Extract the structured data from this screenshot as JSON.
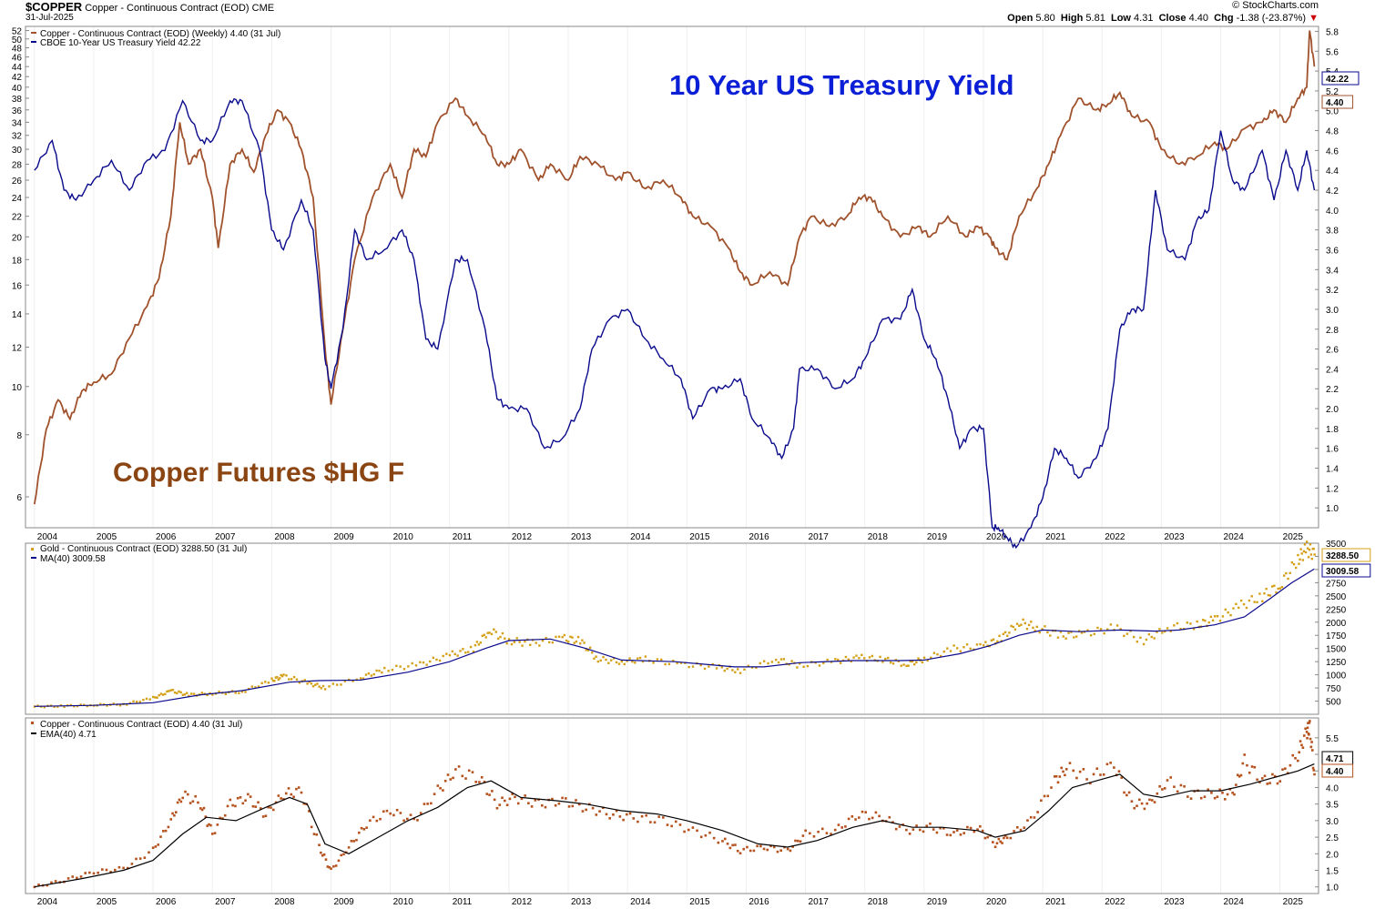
{
  "header": {
    "symbol": "$COPPER",
    "description": "Copper - Continuous Contract (EOD)",
    "exchange": "CME",
    "date": "31-Jul-2025",
    "ohlc": {
      "open_label": "Open",
      "open": "5.80",
      "high_label": "High",
      "high": "5.81",
      "low_label": "Low",
      "low": "4.31",
      "close_label": "Close",
      "close": "4.40",
      "chg_label": "Chg",
      "chg": "-1.38 (-23.87%)"
    },
    "watermark": "© StockCharts.com"
  },
  "annotations": {
    "yield_title": "10 Year US Treasury Yield",
    "copper_title": "Copper Futures $HG F"
  },
  "colors": {
    "copper": "#a0522d",
    "yield": "#0a0a8c",
    "gold": "#d4a017",
    "ma": "#0a0a8c",
    "ema": "#000000",
    "ema_dots": "#b5521e",
    "yield_text": "#0a1fd6",
    "copper_text": "#8b4513"
  },
  "chart_data": [
    {
      "type": "line",
      "title": "Copper vs 10-Year US Treasury Yield (Weekly)",
      "legend": [
        "Copper - Continuous Contract (EOD) (Weekly) 4.40 (31 Jul)",
        "CBOE 10-Year US Treasury Yield 42.22"
      ],
      "x_ticks": [
        "2004",
        "2005",
        "2006",
        "2007",
        "2008",
        "2009",
        "2010",
        "2011",
        "2012",
        "2013",
        "2014",
        "2015",
        "2016",
        "2017",
        "2018",
        "2019",
        "2020",
        "2021",
        "2022",
        "2023",
        "2024",
        "2025"
      ],
      "left_axis": {
        "scale": "log",
        "ylim": [
          5.2,
          53
        ],
        "ticks": [
          6,
          8,
          10,
          12,
          14,
          16,
          18,
          20,
          22,
          24,
          26,
          28,
          30,
          32,
          34,
          36,
          38,
          40,
          42,
          44,
          46,
          48,
          50,
          52
        ]
      },
      "right_axis": {
        "ylim": [
          0.8,
          5.85
        ],
        "ticks": [
          1.0,
          1.2,
          1.4,
          1.6,
          1.8,
          2.0,
          2.2,
          2.4,
          2.6,
          2.8,
          3.0,
          3.2,
          3.4,
          3.6,
          3.8,
          4.0,
          4.2,
          4.4,
          4.6,
          4.8,
          5.0,
          5.2,
          5.4,
          5.6,
          5.8
        ]
      },
      "series": [
        {
          "name": "Copper - Continuous Contract (EOD) (Weekly)",
          "axis": "left",
          "last_label": "4.40",
          "x": [
            2004.0,
            2004.2,
            2004.4,
            2004.6,
            2004.8,
            2005.0,
            2005.3,
            2005.6,
            2005.9,
            2006.1,
            2006.3,
            2006.45,
            2006.6,
            2006.8,
            2007.0,
            2007.1,
            2007.3,
            2007.5,
            2007.7,
            2007.9,
            2008.1,
            2008.3,
            2008.5,
            2008.7,
            2008.9,
            2009.0,
            2009.2,
            2009.4,
            2009.7,
            2010.0,
            2010.2,
            2010.4,
            2010.6,
            2010.8,
            2011.1,
            2011.3,
            2011.6,
            2011.8,
            2012.0,
            2012.2,
            2012.5,
            2012.7,
            2013.0,
            2013.2,
            2013.5,
            2013.8,
            2014.0,
            2014.3,
            2014.6,
            2014.9,
            2015.1,
            2015.4,
            2015.7,
            2015.9,
            2016.1,
            2016.4,
            2016.7,
            2016.9,
            2017.1,
            2017.4,
            2017.7,
            2017.9,
            2018.1,
            2018.3,
            2018.6,
            2018.9,
            2019.1,
            2019.4,
            2019.7,
            2019.9,
            2020.1,
            2020.2,
            2020.4,
            2020.6,
            2020.9,
            2021.1,
            2021.3,
            2021.6,
            2021.9,
            2022.1,
            2022.3,
            2022.5,
            2022.8,
            2023.0,
            2023.3,
            2023.6,
            2023.9,
            2024.1,
            2024.4,
            2024.7,
            2024.9,
            2025.1,
            2025.3,
            2025.45,
            2025.5,
            2025.58
          ],
          "values": [
            5.8,
            8.2,
            9.4,
            8.6,
            9.8,
            10.2,
            10.6,
            12.5,
            14.5,
            16.5,
            22,
            34,
            28,
            30,
            24,
            19,
            28,
            30,
            27,
            32,
            36,
            34,
            30,
            24,
            12,
            9.2,
            13,
            18,
            24,
            28,
            24,
            30,
            29,
            34,
            38,
            35,
            32,
            28,
            28,
            30,
            26,
            28,
            26,
            29,
            28,
            26,
            27,
            25,
            26,
            24,
            22,
            21,
            19,
            17,
            16,
            17,
            16,
            20,
            22,
            21,
            22,
            24,
            24,
            22,
            20,
            21,
            20,
            22,
            20,
            21,
            20,
            19,
            18,
            22,
            25,
            28,
            32,
            38,
            36,
            37,
            39,
            35,
            34,
            30,
            28,
            29,
            31,
            30,
            33,
            34,
            36,
            34,
            38,
            40,
            52,
            44
          ]
        },
        {
          "name": "CBOE 10-Year US Treasury Yield",
          "axis": "right",
          "last_label": "42.22",
          "x": [
            2004.0,
            2004.3,
            2004.5,
            2004.7,
            2005.0,
            2005.3,
            2005.6,
            2005.9,
            2006.2,
            2006.5,
            2006.8,
            2007.0,
            2007.3,
            2007.5,
            2007.8,
            2008.0,
            2008.2,
            2008.5,
            2008.7,
            2008.9,
            2009.0,
            2009.2,
            2009.4,
            2009.6,
            2009.9,
            2010.2,
            2010.4,
            2010.6,
            2010.8,
            2011.1,
            2011.3,
            2011.6,
            2011.8,
            2012.0,
            2012.3,
            2012.6,
            2012.9,
            2013.2,
            2013.4,
            2013.7,
            2014.0,
            2014.3,
            2014.6,
            2014.9,
            2015.1,
            2015.4,
            2015.6,
            2015.9,
            2016.1,
            2016.4,
            2016.6,
            2016.8,
            2016.9,
            2017.2,
            2017.5,
            2017.8,
            2018.0,
            2018.3,
            2018.6,
            2018.8,
            2019.0,
            2019.2,
            2019.4,
            2019.6,
            2019.8,
            2020.0,
            2020.15,
            2020.25,
            2020.4,
            2020.55,
            2020.8,
            2021.0,
            2021.2,
            2021.4,
            2021.6,
            2021.9,
            2022.1,
            2022.3,
            2022.5,
            2022.7,
            2022.9,
            2023.1,
            2023.4,
            2023.6,
            2023.8,
            2024.0,
            2024.2,
            2024.4,
            2024.7,
            2024.9,
            2025.1,
            2025.3,
            2025.45,
            2025.58
          ],
          "values": [
            4.4,
            4.7,
            4.2,
            4.1,
            4.3,
            4.5,
            4.2,
            4.5,
            4.6,
            5.1,
            4.7,
            4.7,
            5.1,
            5.1,
            4.6,
            3.8,
            3.6,
            4.1,
            3.8,
            2.5,
            2.2,
            2.8,
            3.8,
            3.5,
            3.6,
            3.8,
            3.5,
            2.7,
            2.6,
            3.5,
            3.5,
            2.8,
            2.1,
            2.0,
            2.0,
            1.6,
            1.7,
            2.0,
            2.6,
            2.9,
            3.0,
            2.7,
            2.5,
            2.3,
            1.9,
            2.2,
            2.2,
            2.3,
            1.9,
            1.7,
            1.5,
            1.8,
            2.4,
            2.4,
            2.2,
            2.3,
            2.5,
            2.9,
            2.9,
            3.2,
            2.7,
            2.5,
            2.1,
            1.6,
            1.8,
            1.8,
            0.8,
            0.8,
            0.7,
            0.6,
            0.8,
            1.1,
            1.6,
            1.5,
            1.3,
            1.5,
            1.8,
            2.8,
            3.0,
            3.0,
            4.2,
            3.6,
            3.5,
            3.9,
            4.0,
            4.8,
            4.3,
            4.2,
            4.6,
            4.1,
            4.6,
            4.2,
            4.6,
            4.2
          ]
        }
      ]
    },
    {
      "type": "scatter",
      "title": "Gold - Continuous Contract (EOD)",
      "legend": [
        "Gold - Continuous Contract (EOD) 3288.50 (31 Jul)",
        "MA(40) 3009.58"
      ],
      "ylim": [
        250,
        3500
      ],
      "ticks": [
        500,
        750,
        1000,
        1250,
        1500,
        1750,
        2000,
        2250,
        2500,
        2750,
        3000,
        3250,
        3500
      ],
      "series": [
        {
          "name": "Gold - Continuous Contract (EOD)",
          "last_label": "3288.50",
          "x": [
            2004.0,
            2004.5,
            2005.0,
            2005.5,
            2006.0,
            2006.3,
            2006.6,
            2007.0,
            2007.5,
            2008.0,
            2008.2,
            2008.6,
            2008.9,
            2009.5,
            2009.9,
            2010.5,
            2011.0,
            2011.4,
            2011.67,
            2012.0,
            2012.4,
            2012.9,
            2013.2,
            2013.5,
            2013.9,
            2014.3,
            2014.9,
            2015.5,
            2015.9,
            2016.5,
            2016.9,
            2017.5,
            2017.9,
            2018.3,
            2018.7,
            2019.0,
            2019.5,
            2020.0,
            2020.3,
            2020.6,
            2020.9,
            2021.3,
            2021.7,
            2022.2,
            2022.7,
            2023.1,
            2023.6,
            2023.9,
            2024.3,
            2024.7,
            2025.0,
            2025.3,
            2025.45,
            2025.58
          ],
          "values": [
            400,
            410,
            430,
            440,
            560,
            700,
            620,
            650,
            680,
            900,
            980,
            850,
            760,
            950,
            1100,
            1200,
            1380,
            1500,
            1850,
            1650,
            1600,
            1700,
            1650,
            1300,
            1250,
            1300,
            1200,
            1150,
            1080,
            1300,
            1180,
            1260,
            1330,
            1300,
            1200,
            1300,
            1500,
            1550,
            1700,
            2000,
            1900,
            1750,
            1780,
            1900,
            1650,
            1900,
            1950,
            2050,
            2300,
            2500,
            2700,
            3200,
            3400,
            3288
          ]
        },
        {
          "name": "MA(40)",
          "last_label": "3009.58",
          "x": [
            2004.0,
            2005.0,
            2006.0,
            2006.8,
            2007.5,
            2008.3,
            2008.8,
            2009.5,
            2010.3,
            2011.0,
            2011.6,
            2012.0,
            2012.7,
            2013.3,
            2013.9,
            2014.8,
            2015.8,
            2016.3,
            2016.9,
            2017.8,
            2018.6,
            2019.0,
            2019.6,
            2020.1,
            2020.6,
            2021.0,
            2021.6,
            2022.3,
            2022.9,
            2023.3,
            2023.9,
            2024.4,
            2024.9,
            2025.2,
            2025.58
          ],
          "values": [
            400,
            420,
            470,
            620,
            700,
            860,
            890,
            900,
            1050,
            1250,
            1500,
            1650,
            1680,
            1500,
            1280,
            1250,
            1150,
            1150,
            1230,
            1270,
            1270,
            1280,
            1400,
            1550,
            1750,
            1850,
            1820,
            1850,
            1830,
            1850,
            1950,
            2100,
            2500,
            2750,
            3010
          ]
        }
      ]
    },
    {
      "type": "scatter",
      "title": "Copper - Continuous Contract (EOD)",
      "legend": [
        "Copper - Continuous Contract (EOD) 4.40 (31 Jul)",
        "EMA(40) 4.71"
      ],
      "ylim": [
        0.8,
        6.1
      ],
      "ticks": [
        1.0,
        1.5,
        2.0,
        2.5,
        3.0,
        3.5,
        4.0,
        4.5,
        5.0,
        5.5
      ],
      "series": [
        {
          "name": "Copper - Continuous Contract (EOD)",
          "last_label": "4.40",
          "x": [
            2004.0,
            2004.5,
            2005.0,
            2005.5,
            2006.0,
            2006.3,
            2006.5,
            2006.8,
            2007.0,
            2007.3,
            2007.6,
            2007.9,
            2008.2,
            2008.5,
            2008.8,
            2009.0,
            2009.3,
            2009.6,
            2010.0,
            2010.4,
            2010.8,
            2011.1,
            2011.5,
            2011.8,
            2012.1,
            2012.5,
            2012.9,
            2013.3,
            2013.7,
            2014.1,
            2014.6,
            2015.1,
            2015.6,
            2015.9,
            2016.3,
            2016.7,
            2017.0,
            2017.5,
            2017.9,
            2018.3,
            2018.7,
            2019.1,
            2019.5,
            2019.9,
            2020.2,
            2020.4,
            2020.8,
            2021.2,
            2021.4,
            2021.8,
            2022.2,
            2022.5,
            2022.8,
            2023.1,
            2023.5,
            2023.9,
            2024.2,
            2024.4,
            2024.7,
            2025.0,
            2025.3,
            2025.45,
            2025.5,
            2025.58
          ],
          "values": [
            1.0,
            1.2,
            1.45,
            1.55,
            2.1,
            3.0,
            3.8,
            3.5,
            2.6,
            3.5,
            3.7,
            3.2,
            3.8,
            3.9,
            2.2,
            1.5,
            2.2,
            2.9,
            3.3,
            3.0,
            3.9,
            4.5,
            4.3,
            3.5,
            3.7,
            3.5,
            3.6,
            3.4,
            3.2,
            3.1,
            3.0,
            2.7,
            2.4,
            2.1,
            2.2,
            2.1,
            2.6,
            2.7,
            3.2,
            3.1,
            2.7,
            2.8,
            2.6,
            2.8,
            2.3,
            2.5,
            3.0,
            4.2,
            4.6,
            4.3,
            4.7,
            3.5,
            3.5,
            4.2,
            3.8,
            3.8,
            3.8,
            4.8,
            4.2,
            4.3,
            5.0,
            5.7,
            5.8,
            4.4
          ]
        },
        {
          "name": "EMA(40)",
          "last_label": "4.71",
          "x": [
            2004.0,
            2004.8,
            2005.5,
            2006.0,
            2006.5,
            2006.9,
            2007.4,
            2007.9,
            2008.3,
            2008.6,
            2008.9,
            2009.3,
            2009.8,
            2010.3,
            2010.8,
            2011.3,
            2011.7,
            2012.2,
            2012.8,
            2013.3,
            2013.9,
            2014.5,
            2015.0,
            2015.6,
            2016.2,
            2016.7,
            2017.2,
            2017.8,
            2018.3,
            2018.8,
            2019.3,
            2019.9,
            2020.2,
            2020.7,
            2021.1,
            2021.5,
            2021.9,
            2022.3,
            2022.7,
            2023.0,
            2023.5,
            2024.0,
            2024.5,
            2024.9,
            2025.3,
            2025.58
          ],
          "values": [
            1.0,
            1.25,
            1.5,
            1.8,
            2.6,
            3.1,
            3.0,
            3.4,
            3.7,
            3.5,
            2.3,
            2.0,
            2.5,
            3.0,
            3.4,
            4.0,
            4.2,
            3.7,
            3.6,
            3.5,
            3.3,
            3.2,
            3.0,
            2.7,
            2.3,
            2.2,
            2.4,
            2.8,
            3.0,
            2.8,
            2.8,
            2.7,
            2.5,
            2.7,
            3.3,
            4.0,
            4.2,
            4.4,
            3.8,
            3.7,
            3.9,
            3.9,
            4.1,
            4.3,
            4.5,
            4.71
          ]
        }
      ]
    }
  ]
}
